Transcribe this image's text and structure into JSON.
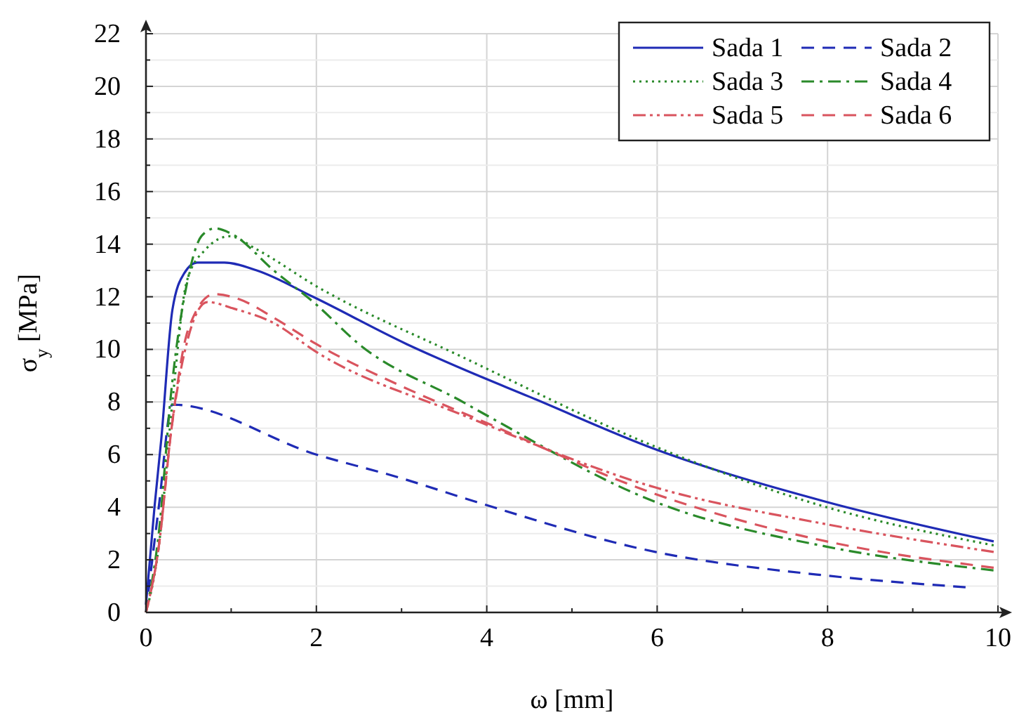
{
  "chart_data": {
    "type": "line",
    "xlabel": "ω [mm]",
    "ylabel": "σ$_{y}$ [MPa]",
    "xlim": [
      0,
      10
    ],
    "ylim": [
      0,
      22
    ],
    "xticks": [
      0,
      {
        "value": 1,
        "label": null
      },
      2,
      {
        "value": 3,
        "label": null
      },
      4,
      {
        "value": 5,
        "label": null
      },
      6,
      {
        "value": 7,
        "label": null
      },
      8,
      {
        "value": 9,
        "label": null
      },
      10
    ],
    "yticks": [
      0,
      {
        "value": 1,
        "label": null
      },
      2,
      {
        "value": 3,
        "label": null
      },
      4,
      {
        "value": 5,
        "label": null
      },
      6,
      {
        "value": 7,
        "label": null
      },
      8,
      {
        "value": 9,
        "label": null
      },
      10,
      {
        "value": 11,
        "label": null
      },
      12,
      {
        "value": 13,
        "label": null
      },
      14,
      {
        "value": 15,
        "label": null
      },
      16,
      {
        "value": 17,
        "label": null
      },
      18,
      {
        "value": 19,
        "label": null
      },
      20,
      {
        "value": 21,
        "label": null
      },
      22
    ],
    "grid": true,
    "legend": "top right",
    "marker": "none",
    "series": [
      {
        "name": "Sada 1",
        "color": "#1f2bb5",
        "line_style": "solid",
        "x": [
          0,
          0.1,
          0.18,
          0.31,
          0.45,
          0.6,
          0.92,
          1.3,
          1.96,
          3.06,
          3.72,
          4.5,
          5.98,
          7.99,
          9.95
        ],
        "values": [
          0.3,
          4,
          6.6,
          11.5,
          12.9,
          13.3,
          13.3,
          13,
          12,
          10.2,
          9.25,
          8.2,
          6.2,
          4.2,
          2.7
        ]
      },
      {
        "name": "Sada 2",
        "color": "#1f2bb5",
        "line_style": "dashed",
        "x": [
          0,
          0.15,
          0.31,
          2,
          3,
          3.78,
          5.98,
          7.99,
          9.62
        ],
        "values": [
          0,
          4,
          7.9,
          6,
          5.1,
          4.3,
          2.3,
          1.4,
          0.96
        ]
      },
      {
        "name": "Sada 3",
        "color": "#2a8a2a",
        "line_style": "dotted",
        "x": [
          0,
          0.15,
          0.31,
          0.48,
          0.7,
          0.98,
          1.3,
          2,
          3.72,
          5.98,
          7.99,
          9.95
        ],
        "values": [
          0,
          2.5,
          8,
          12.6,
          13.8,
          14.3,
          13.8,
          12.4,
          9.7,
          6.3,
          4,
          2.55
        ]
      },
      {
        "name": "Sada 4",
        "color": "#2a8a2a",
        "line_style": "dashdot",
        "x": [
          0,
          0.15,
          0.3,
          0.5,
          0.65,
          0.81,
          1.0,
          1.5,
          2,
          2.5,
          3.72,
          4.05,
          5.98,
          7.99,
          9.95
        ],
        "values": [
          0,
          3,
          8.5,
          12.8,
          14.3,
          14.6,
          14.4,
          13,
          11.7,
          10.2,
          8,
          7.4,
          4.2,
          2.5,
          1.6
        ]
      },
      {
        "name": "Sada 5",
        "color": "#d9545e",
        "line_style": "dashdotdot",
        "x": [
          0,
          0.15,
          0.3,
          0.5,
          0.72,
          1.03,
          1.5,
          2,
          3.72,
          5.98,
          7.99,
          9.95
        ],
        "values": [
          0,
          2.5,
          7,
          10.5,
          11.8,
          11.55,
          11,
          9.9,
          7.5,
          4.75,
          3.35,
          2.3
        ]
      },
      {
        "name": "Sada 6",
        "color": "#d9545e",
        "line_style": "dashed",
        "x": [
          0,
          0.15,
          0.3,
          0.5,
          0.8,
          1.1,
          1.5,
          2,
          3,
          4,
          5.98,
          7.99,
          9.95
        ],
        "values": [
          0,
          2.5,
          7,
          10.8,
          12.1,
          11.9,
          11.2,
          10.2,
          8.6,
          7.2,
          4.5,
          2.7,
          1.7
        ]
      }
    ]
  }
}
